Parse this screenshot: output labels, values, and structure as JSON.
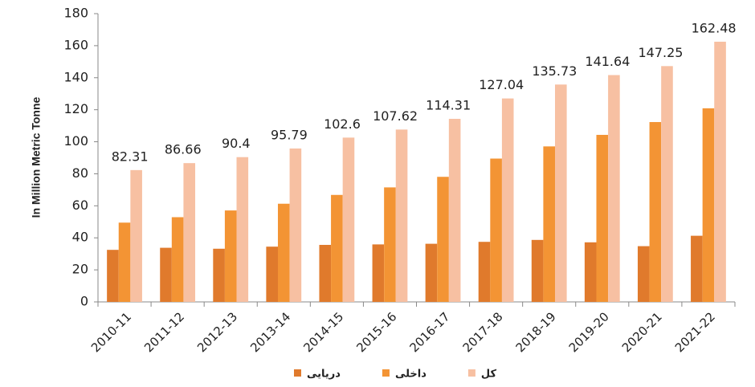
{
  "chart_data": {
    "type": "bar",
    "y_label": "In Million Metric Tonne",
    "categories": [
      "2010-11",
      "2011-12",
      "2012-13",
      "2013-14",
      "2014-15",
      "2015-16",
      "2016-17",
      "2017-18",
      "2018-19",
      "2019-20",
      "2020-21",
      "2021-22"
    ],
    "series": [
      {
        "name": "دریایی",
        "color": "#e07a2c",
        "values": [
          32.5,
          33.8,
          33.2,
          34.5,
          35.6,
          35.9,
          36.3,
          37.5,
          38.7,
          37.2,
          34.8,
          41.3
        ]
      },
      {
        "name": "داخلی",
        "color": "#f39434",
        "values": [
          49.5,
          52.9,
          57.1,
          61.3,
          66.8,
          71.5,
          78.1,
          89.5,
          97.1,
          104.3,
          112.3,
          120.9
        ]
      },
      {
        "name": "کل",
        "color": "#f7c0a2",
        "values": [
          82.31,
          86.66,
          90.4,
          95.79,
          102.6,
          107.62,
          114.31,
          127.04,
          135.73,
          141.64,
          147.25,
          162.48
        ],
        "data_labels": true
      }
    ],
    "ylim": [
      0,
      180
    ],
    "yticks": [
      0,
      20,
      40,
      60,
      80,
      100,
      120,
      140,
      160,
      180
    ],
    "grid": false,
    "legend": "bottom"
  }
}
